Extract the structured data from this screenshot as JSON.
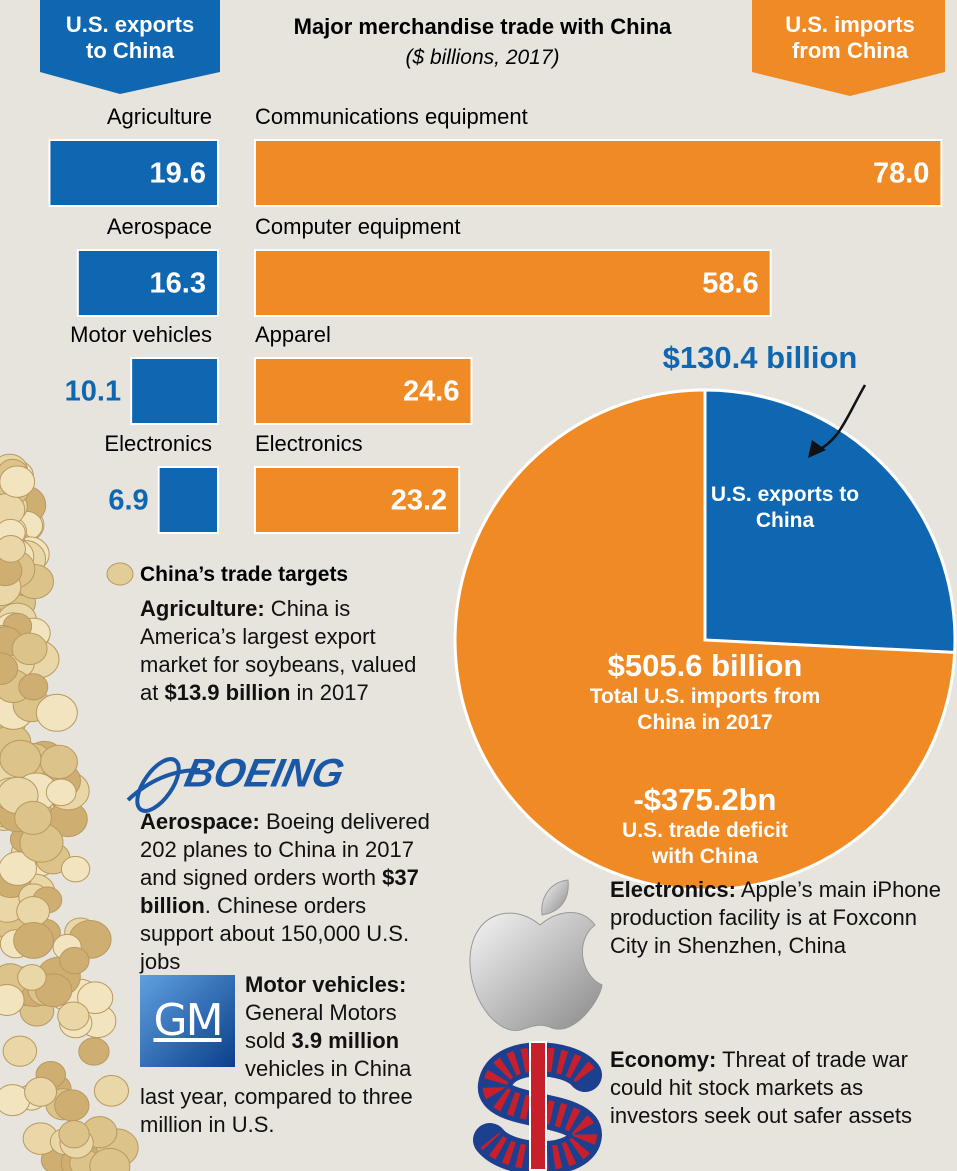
{
  "chart_data": [
    {
      "type": "bar",
      "title": "Major merchandise trade with China",
      "subtitle": "($ billions, 2017)",
      "series": [
        {
          "name": "U.S. exports to China",
          "color": "#0f67b1",
          "categories": [
            "Agriculture",
            "Aerospace",
            "Motor vehicles",
            "Electronics"
          ],
          "values": [
            19.6,
            16.3,
            10.1,
            6.9
          ]
        },
        {
          "name": "U.S. imports from China",
          "color": "#f08a24",
          "categories": [
            "Communications equipment",
            "Computer equipment",
            "Apparel",
            "Electronics"
          ],
          "values": [
            78,
            58.6,
            24.6,
            23.2
          ],
          "value_labels": [
            "78.0",
            "58.6",
            "24.6",
            "23.2"
          ]
        }
      ]
    },
    {
      "type": "pie",
      "labels": [
        "U.S. exports to China",
        "Total U.S. imports from China in 2017"
      ],
      "values": [
        130.4,
        505.6
      ],
      "value_labels": [
        "$130.4 billion",
        "$505.6 billion"
      ],
      "colors": [
        "#0f67b1",
        "#f08a24"
      ],
      "annotation": {
        "label": "-$375.2bn",
        "text": "U.S. trade deficit with China"
      }
    }
  ],
  "notes": {
    "title": "China’s trade targets",
    "items": [
      [
        {
          "text": "Agriculture:",
          "bold": true
        },
        {
          "text": " China is America’s largest export market for soybeans, valued at "
        },
        {
          "text": "$13.9 billion",
          "bold": true
        },
        {
          "text": " in 2017"
        }
      ],
      [
        {
          "text": "Aerospace:",
          "bold": true
        },
        {
          "text": " Boeing delivered 202 planes to China in 2017 and signed orders worth "
        },
        {
          "text": "$37 billion",
          "bold": true
        },
        {
          "text": ". Chinese orders support about 150,000 U.S. jobs"
        }
      ],
      [
        {
          "text": "Motor vehicles:",
          "bold": true
        },
        {
          "text": " General Motors sold "
        },
        {
          "text": "3.9 million",
          "bold": true
        },
        {
          "text": " vehicles in China last year, compared to three million in U.S."
        }
      ],
      [
        {
          "text": "Electronics:",
          "bold": true
        },
        {
          "text": " Apple’s main iPhone production facility is at Foxconn City in Shenzhen, China"
        }
      ],
      [
        {
          "text": "Economy:",
          "bold": true
        },
        {
          "text": " Threat of trade war could hit stock markets as investors seek out safer assets"
        }
      ]
    ]
  },
  "logos": {
    "boeing": "BOEING",
    "gm": "GM"
  }
}
